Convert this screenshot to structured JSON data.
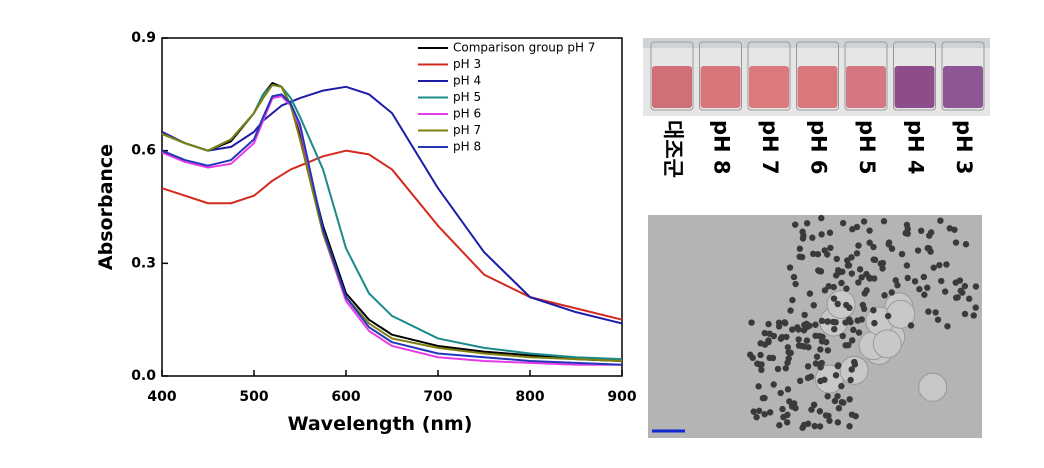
{
  "chart_data": {
    "type": "line",
    "xlabel": "Wavelength (nm)",
    "ylabel": "Absorbance",
    "x": [
      400,
      425,
      450,
      475,
      500,
      510,
      520,
      530,
      540,
      550,
      575,
      600,
      625,
      650,
      700,
      750,
      800,
      850,
      900
    ],
    "xlim": [
      400,
      900
    ],
    "xticks": [
      400,
      500,
      600,
      700,
      800,
      900
    ],
    "ylim": [
      0,
      0.9
    ],
    "yticks": [
      {
        "value": 0,
        "label": "0.0"
      },
      0.3,
      0.6,
      0.9
    ],
    "legend": "upper right",
    "series": [
      {
        "name": "Comparison group pH 7",
        "color": "#000000",
        "values": [
          0.645,
          0.62,
          0.6,
          0.625,
          0.7,
          0.75,
          0.78,
          0.77,
          0.72,
          0.64,
          0.4,
          0.22,
          0.15,
          0.11,
          0.08,
          0.065,
          0.055,
          0.045,
          0.04
        ]
      },
      {
        "name": "pH 3",
        "color": "#d42a1e",
        "values": [
          0.5,
          0.48,
          0.46,
          0.46,
          0.48,
          0.5,
          0.52,
          0.535,
          0.55,
          0.56,
          0.585,
          0.6,
          0.59,
          0.55,
          0.4,
          0.27,
          0.21,
          0.18,
          0.15
        ]
      },
      {
        "name": "pH 4",
        "color": "#1c1ca8",
        "values": [
          0.65,
          0.62,
          0.6,
          0.61,
          0.65,
          0.68,
          0.7,
          0.72,
          0.73,
          0.74,
          0.76,
          0.77,
          0.75,
          0.7,
          0.5,
          0.33,
          0.21,
          0.17,
          0.14
        ]
      },
      {
        "name": "pH 5",
        "color": "#1a8a8a",
        "values": [
          0.645,
          0.62,
          0.6,
          0.63,
          0.7,
          0.75,
          0.775,
          0.77,
          0.74,
          0.69,
          0.55,
          0.34,
          0.22,
          0.16,
          0.1,
          0.075,
          0.06,
          0.05,
          0.045
        ]
      },
      {
        "name": "pH 6",
        "color": "#e83be8",
        "values": [
          0.595,
          0.57,
          0.555,
          0.565,
          0.62,
          0.68,
          0.74,
          0.745,
          0.72,
          0.66,
          0.38,
          0.2,
          0.12,
          0.08,
          0.05,
          0.04,
          0.035,
          0.03,
          0.03
        ]
      },
      {
        "name": "pH 7",
        "color": "#7f7f10",
        "values": [
          0.645,
          0.62,
          0.6,
          0.63,
          0.7,
          0.74,
          0.775,
          0.77,
          0.72,
          0.63,
          0.38,
          0.21,
          0.14,
          0.1,
          0.075,
          0.06,
          0.05,
          0.045,
          0.04
        ]
      },
      {
        "name": "pH 8",
        "color": "#2436b8",
        "values": [
          0.6,
          0.575,
          0.56,
          0.575,
          0.63,
          0.69,
          0.745,
          0.75,
          0.725,
          0.67,
          0.39,
          0.21,
          0.13,
          0.09,
          0.06,
          0.05,
          0.04,
          0.035,
          0.03
        ]
      }
    ]
  },
  "photo_labels": [
    "대조군",
    "pH 8",
    "pH 7",
    "pH 6",
    "pH 5",
    "pH 4",
    "pH 3"
  ]
}
